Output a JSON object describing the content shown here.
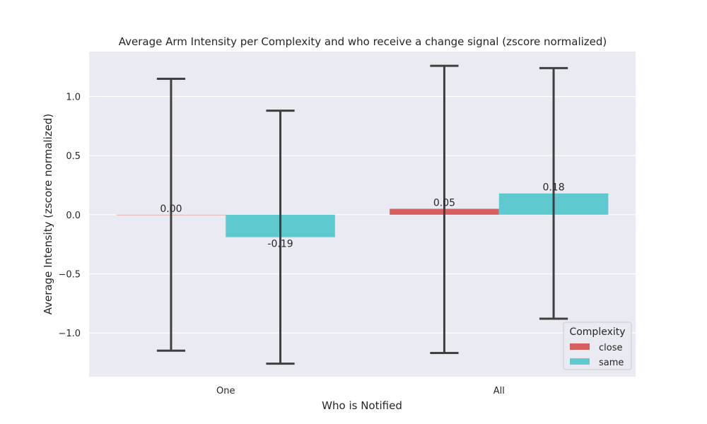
{
  "chart_data": {
    "type": "bar",
    "title": "Average Arm Intensity per Complexity and who receive a change signal (zscore normalized)",
    "xlabel": "Who is Notified",
    "ylabel": "Average Intensity (zscore normalized)",
    "categories": [
      "One",
      "All"
    ],
    "series": [
      {
        "name": "close",
        "color": "#d65f5f",
        "values": [
          0.0,
          0.05
        ],
        "value_labels": [
          "0.00",
          "0.05"
        ],
        "error_low": [
          -1.15,
          -1.17
        ],
        "error_high": [
          1.15,
          1.26
        ]
      },
      {
        "name": "same",
        "color": "#5fc9d0",
        "values": [
          -0.19,
          0.18
        ],
        "value_labels": [
          "-0.19",
          "0.18"
        ],
        "error_low": [
          -1.26,
          -0.88
        ],
        "error_high": [
          0.88,
          1.24
        ]
      }
    ],
    "ylim": [
      -1.37,
      1.38
    ],
    "yticks": [
      -1.0,
      -0.5,
      0.0,
      0.5,
      1.0
    ],
    "ytick_labels": [
      "−1.0",
      "−0.5",
      "0.0",
      "0.5",
      "1.0"
    ],
    "grid": true,
    "legend": {
      "title": "Complexity",
      "placement": "lower-right"
    }
  }
}
